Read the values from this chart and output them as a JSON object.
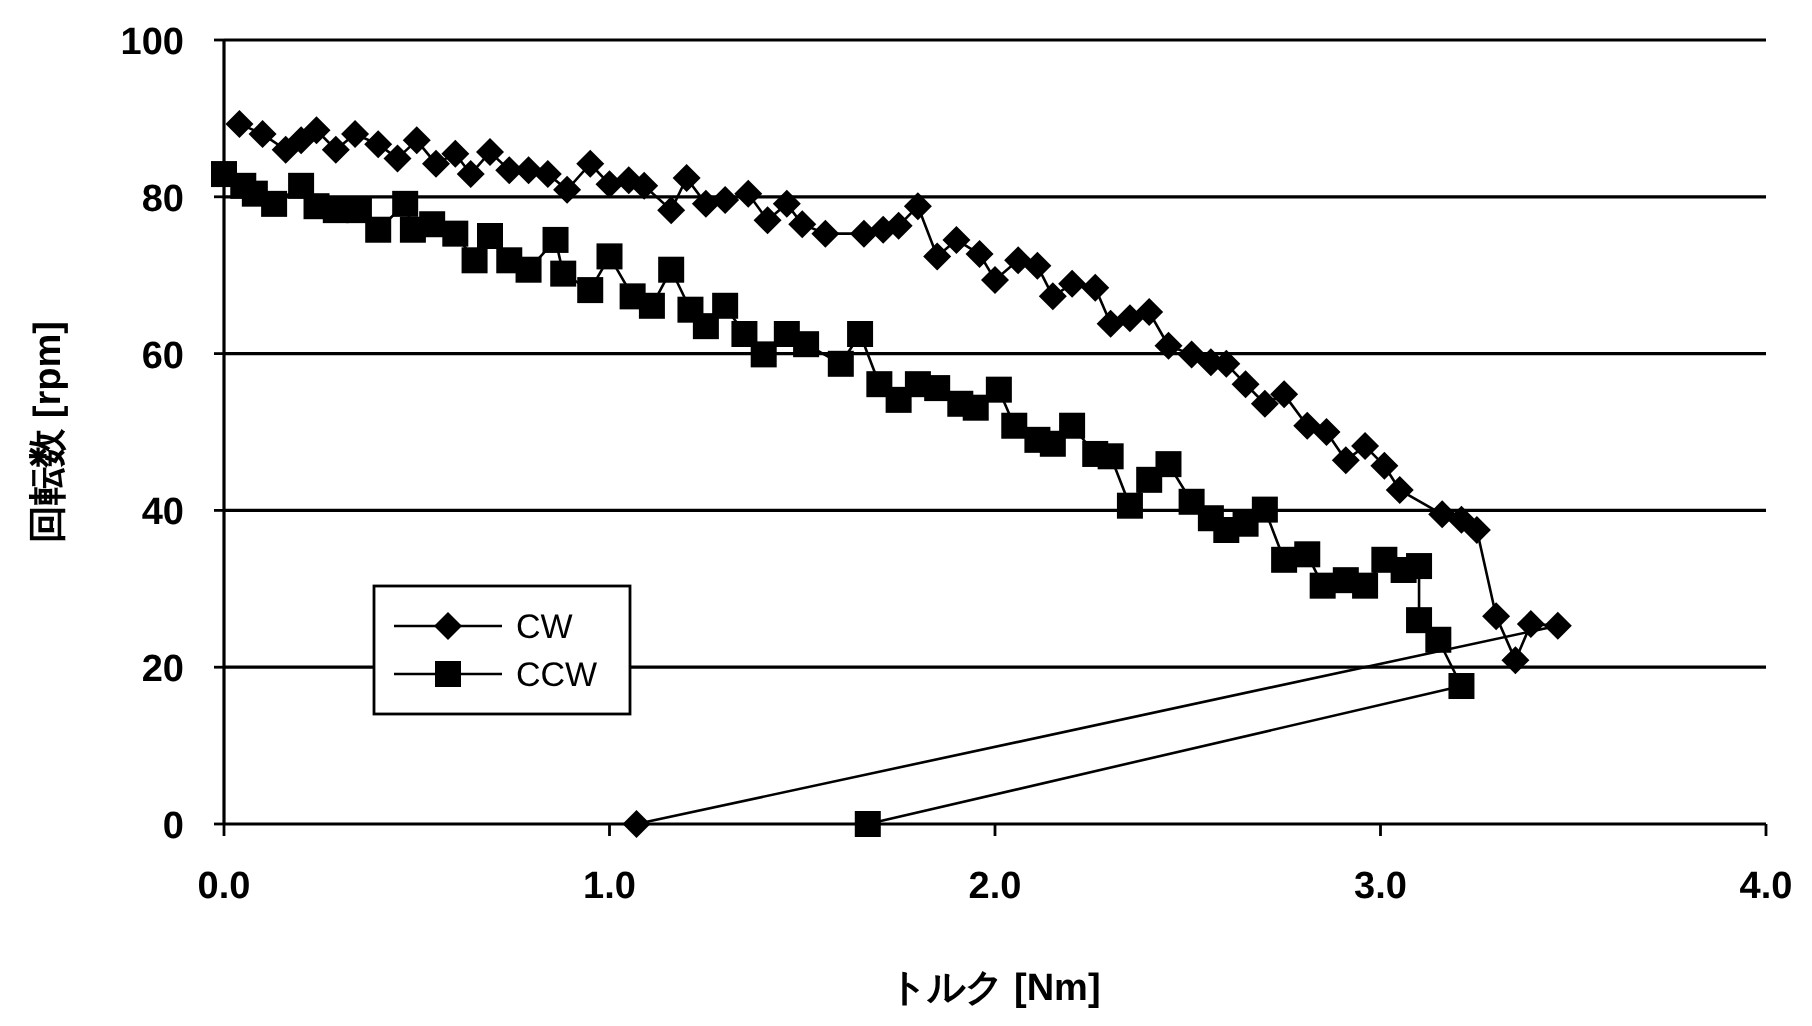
{
  "chart_data": {
    "type": "line",
    "xlabel": "トルク [Nm]",
    "ylabel": "回転数 [rpm]",
    "xlim": [
      0,
      4
    ],
    "ylim": [
      0,
      100
    ],
    "xticks": [
      {
        "value": 0,
        "label": "0.0"
      },
      {
        "value": 1,
        "label": "1.0"
      },
      {
        "value": 2,
        "label": "2.0"
      },
      {
        "value": 3,
        "label": "3.0"
      },
      {
        "value": 4,
        "label": "4.0"
      }
    ],
    "yticks": [
      0,
      20,
      40,
      60,
      80,
      100
    ],
    "grid": "y",
    "legend": "bottom left",
    "line_style": "solid",
    "series": [
      {
        "name": "CW",
        "color": "#000000",
        "marker": "diamond",
        "x": [
          0.04,
          0.1,
          0.16,
          0.2,
          0.24,
          0.29,
          0.34,
          0.4,
          0.45,
          0.5,
          0.55,
          0.6,
          0.64,
          0.69,
          0.74,
          0.79,
          0.84,
          0.89,
          0.95,
          1.0,
          1.05,
          1.09,
          1.16,
          1.2,
          1.25,
          1.3,
          1.36,
          1.41,
          1.46,
          1.5,
          1.56,
          1.66,
          1.71,
          1.75,
          1.8,
          1.85,
          1.9,
          1.96,
          2.0,
          2.06,
          2.11,
          2.15,
          2.2,
          2.26,
          2.3,
          2.35,
          2.4,
          2.45,
          2.51,
          2.56,
          2.6,
          2.65,
          2.7,
          2.75,
          2.81,
          2.86,
          2.91,
          2.96,
          3.01,
          3.05,
          3.16,
          3.21,
          3.25,
          3.3,
          3.35,
          3.39,
          3.46,
          1.07
        ],
        "values": [
          89.3,
          88.0,
          86.0,
          87.2,
          88.5,
          86.0,
          88.0,
          86.7,
          84.9,
          87.2,
          84.2,
          85.5,
          82.9,
          85.7,
          83.4,
          83.4,
          82.9,
          80.9,
          84.2,
          81.6,
          82.1,
          81.4,
          78.3,
          82.4,
          79.1,
          79.6,
          80.4,
          77.0,
          79.1,
          76.5,
          75.3,
          75.3,
          75.8,
          76.3,
          78.8,
          72.4,
          74.5,
          72.7,
          69.4,
          71.9,
          71.2,
          67.3,
          68.9,
          68.4,
          63.8,
          64.5,
          65.3,
          61.0,
          59.9,
          58.9,
          58.7,
          56.1,
          53.6,
          54.8,
          50.8,
          50.0,
          46.4,
          48.2,
          45.7,
          42.6,
          39.5,
          38.8,
          37.5,
          26.5,
          20.9,
          25.5,
          25.3,
          0
        ]
      },
      {
        "name": "CCW",
        "color": "#000000",
        "marker": "square",
        "x": [
          0.0,
          0.05,
          0.08,
          0.13,
          0.2,
          0.24,
          0.29,
          0.35,
          0.4,
          0.47,
          0.49,
          0.54,
          0.6,
          0.65,
          0.69,
          0.74,
          0.79,
          0.86,
          0.88,
          0.95,
          1.0,
          1.06,
          1.11,
          1.16,
          1.21,
          1.25,
          1.3,
          1.35,
          1.4,
          1.46,
          1.51,
          1.6,
          1.65,
          1.7,
          1.75,
          1.8,
          1.85,
          1.91,
          1.95,
          2.01,
          2.05,
          2.11,
          2.15,
          2.2,
          2.26,
          2.3,
          2.35,
          2.4,
          2.45,
          2.51,
          2.56,
          2.6,
          2.65,
          2.7,
          2.75,
          2.81,
          2.85,
          2.91,
          2.96,
          3.01,
          3.06,
          3.1,
          3.1,
          3.15,
          3.21,
          1.67
        ],
        "values": [
          82.9,
          81.4,
          80.4,
          79.1,
          81.4,
          78.8,
          78.3,
          78.3,
          75.8,
          79.1,
          75.8,
          76.5,
          75.3,
          71.9,
          75.0,
          71.9,
          70.7,
          74.5,
          70.2,
          68.1,
          72.4,
          67.3,
          66.1,
          70.7,
          65.6,
          63.5,
          66.1,
          62.5,
          59.9,
          62.5,
          61.2,
          58.7,
          62.5,
          56.1,
          54.1,
          56.1,
          55.6,
          53.6,
          53.1,
          55.4,
          50.8,
          49.0,
          48.5,
          50.8,
          47.2,
          46.9,
          40.6,
          43.9,
          45.9,
          41.1,
          39.0,
          37.5,
          38.3,
          40.1,
          33.7,
          34.4,
          30.4,
          31.1,
          30.4,
          33.7,
          32.4,
          32.9,
          26.0,
          23.5,
          17.6,
          0
        ]
      }
    ]
  }
}
